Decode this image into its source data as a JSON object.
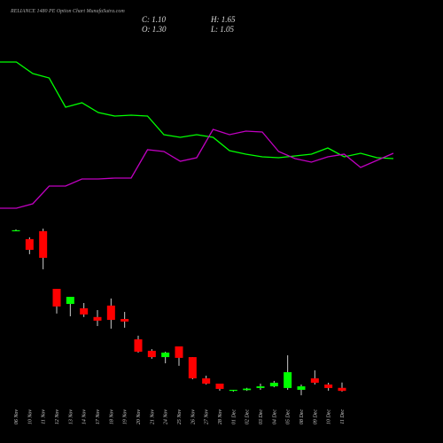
{
  "chart_data": {
    "type": "candlestick",
    "title": "RELIANCE 1480  PE Option  Chart MunafaSutra.com",
    "ohlc_labels": [
      "C: 1.10",
      "H: 1.65",
      "O: 1.30",
      "L: 1.05"
    ],
    "categories": [
      "06 Nov",
      "10 Nov",
      "11 Nov",
      "12 Nov",
      "13 Nov",
      "14 Nov",
      "17 Nov",
      "18 Nov",
      "19 Nov",
      "20 Nov",
      "21 Nov",
      "24 Nov",
      "25 Nov",
      "26 Nov",
      "27 Nov",
      "28 Nov",
      "01 Dec",
      "02 Dec",
      "03 Dec",
      "04 Dec",
      "05 Dec",
      "08 Dec",
      "09 Dec",
      "10 Dec",
      "11 Dec"
    ],
    "open": [
      11.76,
      11.17,
      11.7,
      7.87,
      6.87,
      6.58,
      6.0,
      6.76,
      5.87,
      4.52,
      3.76,
      3.34,
      4.05,
      3.34,
      1.93,
      1.58,
      1.11,
      1.15,
      1.29,
      1.4,
      1.29,
      1.17,
      1.93,
      1.52,
      1.3
    ],
    "high": [
      11.82,
      11.29,
      11.87,
      7.87,
      7.34,
      6.93,
      6.46,
      7.23,
      6.34,
      4.76,
      3.87,
      3.7,
      4.05,
      3.34,
      2.11,
      1.58,
      1.17,
      1.3,
      1.58,
      1.76,
      3.46,
      1.52,
      2.46,
      1.64,
      1.65
    ],
    "low": [
      11.7,
      10.17,
      9.17,
      6.23,
      6.05,
      6.0,
      5.4,
      5.23,
      5.29,
      3.64,
      3.23,
      2.93,
      2.76,
      1.87,
      1.52,
      1.11,
      1.05,
      1.1,
      1.17,
      1.34,
      1.17,
      0.81,
      1.52,
      1.11,
      1.05
    ],
    "close": [
      11.76,
      10.46,
      9.93,
      6.7,
      7.34,
      6.17,
      5.76,
      5.81,
      5.7,
      3.7,
      3.34,
      3.64,
      3.29,
      1.93,
      1.58,
      1.23,
      1.17,
      1.25,
      1.4,
      1.64,
      2.34,
      1.4,
      1.64,
      1.29,
      1.1
    ],
    "ylim": [
      0.58,
      12.34
    ],
    "up_color": "#00ff00",
    "down_color": "#ff0000",
    "indicator": {
      "ylim": [
        0,
        100
      ],
      "series": [
        {
          "color": "#00ff00",
          "values": [
            90,
            90,
            83.5,
            81,
            64.5,
            67,
            61.5,
            59.5,
            60,
            59.5,
            49,
            47.5,
            49,
            47.5,
            40,
            38,
            36.5,
            36,
            37,
            38,
            41.5,
            36.5,
            38.5,
            36,
            35.5
          ]
        },
        {
          "color": "#c000c0",
          "values": [
            7.5,
            7.5,
            10,
            20,
            20,
            24,
            24,
            24.5,
            24.5,
            40.5,
            39.5,
            34,
            36,
            52,
            49,
            51,
            50.5,
            39.5,
            35.5,
            33.5,
            36.5,
            38,
            30.5,
            34.5,
            38.5
          ]
        }
      ]
    }
  }
}
